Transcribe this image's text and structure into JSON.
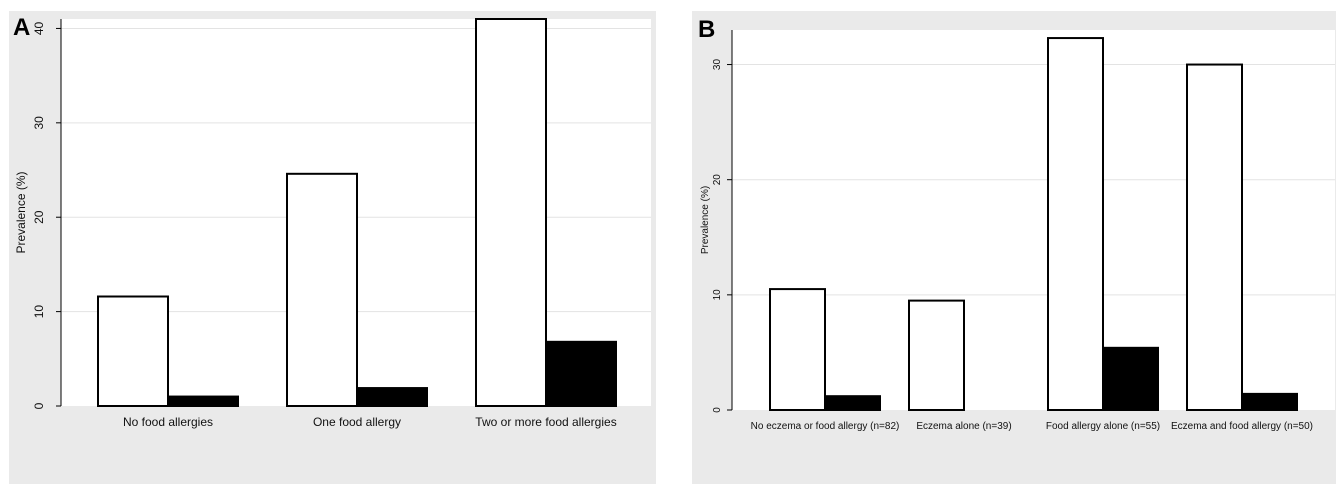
{
  "chart_data": [
    {
      "type": "bar",
      "panel_label": "A",
      "title": "",
      "xlabel": "",
      "ylabel": "Prevalence (%)",
      "ylim": [
        0,
        41
      ],
      "yticks": [
        "0",
        "10",
        "20",
        "30",
        "40"
      ],
      "categories": [
        "No food allergies",
        "One food allergy",
        "Two or more food allergies"
      ],
      "series": [
        {
          "fill": "#ffffff",
          "values": [
            11.6,
            24.6,
            41.0
          ]
        },
        {
          "fill": "#000000",
          "values": [
            1.0,
            1.9,
            6.8
          ]
        }
      ],
      "grid": true,
      "legend": "none"
    },
    {
      "type": "bar",
      "panel_label": "B",
      "title": "",
      "xlabel": "",
      "ylabel": "Prevalence (%)",
      "ylim": [
        0,
        33
      ],
      "yticks": [
        "0",
        "10",
        "20",
        "30"
      ],
      "categories": [
        "No eczema or food allergy (n=82)",
        "Eczema alone (n=39)",
        "Food allergy alone (n=55)",
        "Eczema and food allergy (n=50)"
      ],
      "series": [
        {
          "fill": "#ffffff",
          "values": [
            10.5,
            9.5,
            32.3,
            30.0
          ]
        },
        {
          "fill": "#000000",
          "values": [
            1.2,
            0.0,
            5.4,
            1.4
          ]
        }
      ],
      "grid": true,
      "legend": "none"
    }
  ]
}
